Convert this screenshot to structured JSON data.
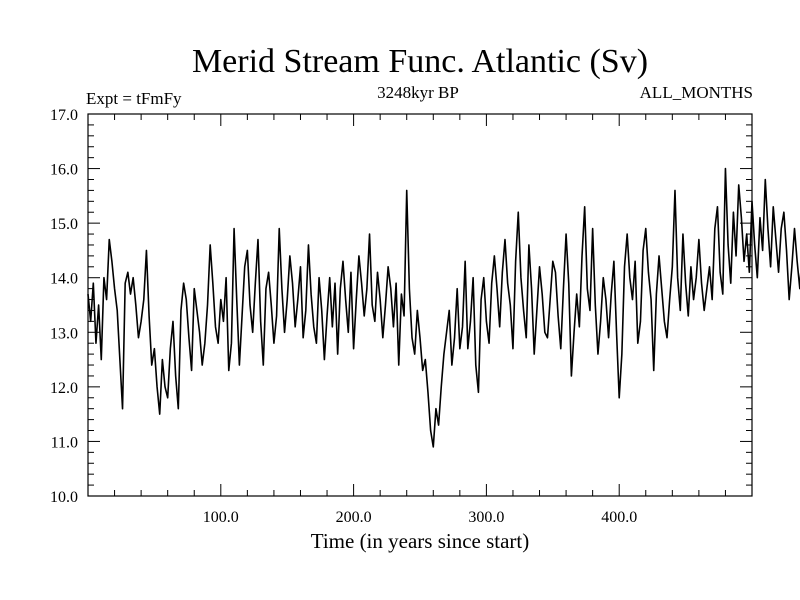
{
  "chart_data": {
    "type": "line",
    "title": "Merid Stream Func. Atlantic (Sv)",
    "subtitle_left": "Expt = tFmFy",
    "subtitle_center": "3248kyr BP",
    "subtitle_right": "ALL_MONTHS",
    "xlabel": "Time (in years since start)",
    "ylabel": "",
    "xlim": [
      0,
      500
    ],
    "ylim": [
      10.0,
      17.0
    ],
    "x_ticks": [
      100,
      200,
      300,
      400
    ],
    "x_tick_labels": [
      "100.0",
      "200.0",
      "300.0",
      "400.0"
    ],
    "y_ticks": [
      10,
      11,
      12,
      13,
      14,
      15,
      16,
      17
    ],
    "y_tick_labels": [
      "10.0",
      "11.0",
      "12.0",
      "13.0",
      "14.0",
      "15.0",
      "16.0",
      "17.0"
    ],
    "grid": false,
    "legend": "none",
    "series": [
      {
        "name": "Atlantic MOC",
        "x_start": 0,
        "x_step": 2,
        "values": [
          13.7,
          13.2,
          13.9,
          12.8,
          13.5,
          12.5,
          14.0,
          13.6,
          14.7,
          14.3,
          13.8,
          13.4,
          12.5,
          11.6,
          13.9,
          14.1,
          13.7,
          14.0,
          13.5,
          12.9,
          13.2,
          13.6,
          14.5,
          13.3,
          12.4,
          12.7,
          12.0,
          11.5,
          12.5,
          12.0,
          11.8,
          12.7,
          13.2,
          12.2,
          11.6,
          13.4,
          13.9,
          13.6,
          12.9,
          12.3,
          13.8,
          13.4,
          13.0,
          12.4,
          12.8,
          13.5,
          14.6,
          13.9,
          13.1,
          12.8,
          13.6,
          13.2,
          14.0,
          12.3,
          12.8,
          14.9,
          13.6,
          12.4,
          13.3,
          14.2,
          14.5,
          13.5,
          13.0,
          13.9,
          14.7,
          13.2,
          12.4,
          13.8,
          14.1,
          13.5,
          12.8,
          13.3,
          14.9,
          13.8,
          13.0,
          13.6,
          14.4,
          13.9,
          13.1,
          13.6,
          14.2,
          12.9,
          13.4,
          14.6,
          13.7,
          13.1,
          12.8,
          14.0,
          13.4,
          12.5,
          13.3,
          14.0,
          13.1,
          13.9,
          12.6,
          13.8,
          14.3,
          13.6,
          13.0,
          14.1,
          12.7,
          13.6,
          14.4,
          13.9,
          13.3,
          13.8,
          14.8,
          13.5,
          13.2,
          14.1,
          13.6,
          12.9,
          13.5,
          14.2,
          13.8,
          13.1,
          13.9,
          12.4,
          13.7,
          13.3,
          15.6,
          13.8,
          12.9,
          12.6,
          13.4,
          12.9,
          12.3,
          12.5,
          11.9,
          11.2,
          10.9,
          11.6,
          11.3,
          12.0,
          12.6,
          13.0,
          13.4,
          12.4,
          12.9,
          13.8,
          12.7,
          13.1,
          14.3,
          12.7,
          13.2,
          14.0,
          12.4,
          11.9,
          13.6,
          14.0,
          13.2,
          12.8,
          13.9,
          14.4,
          13.8,
          13.1,
          14.1,
          14.7,
          13.9,
          13.5,
          12.7,
          14.3,
          15.2,
          14.0,
          13.4,
          12.9,
          14.6,
          13.8,
          12.6,
          13.4,
          14.2,
          13.7,
          13.0,
          12.9,
          13.6,
          14.3,
          14.1,
          13.3,
          12.7,
          13.8,
          14.8,
          13.9,
          12.2,
          13.0,
          13.7,
          13.1,
          14.4,
          15.3,
          13.8,
          13.4,
          14.9,
          13.5,
          12.6,
          13.2,
          14.0,
          13.6,
          12.9,
          13.7,
          14.3,
          13.0,
          11.8,
          12.6,
          14.2,
          14.8,
          14.0,
          13.6,
          14.3,
          12.8,
          13.2,
          14.5,
          14.9,
          14.1,
          13.6,
          12.3,
          13.7,
          14.4,
          13.8,
          13.2,
          12.9,
          13.6,
          14.2,
          15.6,
          14.0,
          13.4,
          14.8,
          13.9,
          13.3,
          14.2,
          13.6,
          14.0,
          14.7,
          13.9,
          13.4,
          13.8,
          14.2,
          13.6,
          14.9,
          15.3,
          14.1,
          13.7,
          16.0,
          14.6,
          13.9,
          15.2,
          14.4,
          15.7,
          15.1,
          14.3,
          14.8,
          14.1,
          15.4,
          14.6,
          14.0,
          15.1,
          14.5,
          15.8,
          14.9,
          14.2,
          15.3,
          14.7,
          14.1,
          14.9,
          15.2,
          14.5,
          13.6,
          14.2,
          14.9,
          14.3,
          13.8,
          14.6,
          15.5,
          14.8,
          14.1,
          13.4,
          14.0,
          15.2,
          14.4,
          13.9,
          14.7,
          16.1,
          15.0,
          14.2,
          13.6,
          14.4,
          15.5,
          16.2,
          14.9,
          14.3,
          13.5,
          14.0,
          15.0,
          16.3,
          14.8,
          14.1,
          13.4,
          14.6,
          15.1,
          14.3,
          13.8,
          14.4,
          15.2,
          13.9,
          13.2,
          14.0,
          14.6,
          13.8,
          12.7,
          13.5,
          14.3,
          13.9,
          12.9,
          13.6,
          14.8,
          14.2,
          13.5,
          12.8,
          13.7,
          14.4,
          13.9,
          14.7,
          13.4,
          12.6,
          13.3,
          14.1,
          15.0,
          14.4,
          13.8,
          13.2,
          14.0,
          14.6,
          13.7,
          13.1,
          14.5,
          15.1,
          14.2,
          13.6,
          12.9,
          13.8,
          14.3,
          12.7,
          13.5,
          14.8,
          14.0,
          11.6,
          12.9,
          14.2,
          13.4,
          12.4,
          11.9,
          13.8,
          14.4,
          12.8,
          12.1,
          13.5,
          14.6,
          13.2,
          11.3,
          12.9,
          14.1,
          13.6,
          13.0,
          14.5,
          15.2,
          14.3,
          13.7,
          14.9,
          13.9,
          13.4,
          14.6,
          15.5,
          14.2,
          13.6,
          14.8,
          14.0,
          13.5,
          14.3,
          14.9,
          13.8,
          13.2,
          14.4,
          14.7,
          14.0,
          13.6,
          14.5,
          14.1,
          13.8,
          14.6,
          14.2,
          13.9,
          14.3
        ]
      }
    ]
  }
}
